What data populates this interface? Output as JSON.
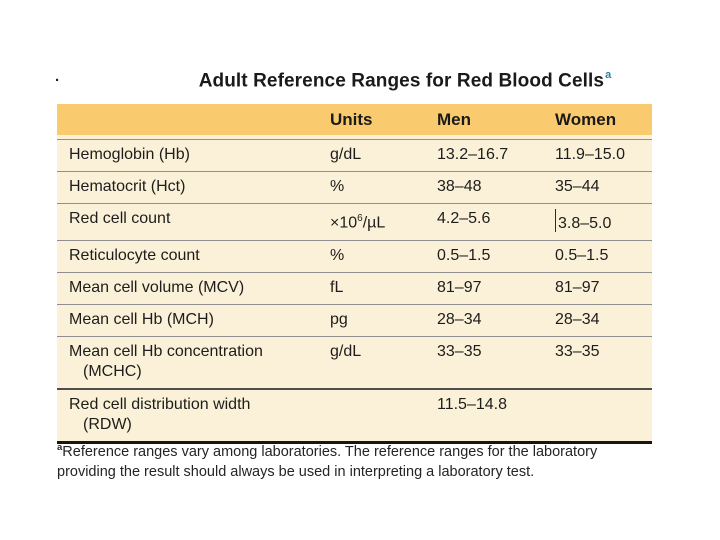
{
  "page": {
    "decorative_period": "."
  },
  "title": {
    "text": "Adult Reference Ranges for Red Blood Cells",
    "superscript": "a"
  },
  "table": {
    "header": {
      "units": "Units",
      "men": "Men",
      "women": "Women"
    },
    "rows": [
      {
        "label": "Hemoglobin (Hb)",
        "units": "g/dL",
        "men": "13.2–16.7",
        "women": "11.9–15.0"
      },
      {
        "label": "Hematocrit (Hct)",
        "units": "%",
        "men": "38–48",
        "women": "35–44"
      },
      {
        "label": "Red cell count",
        "units": {
          "pre": "×10",
          "sup": "6",
          "post": "/µL"
        },
        "men": "4.2–5.6",
        "women": "3.8–5.0",
        "cursor_artifact": true
      },
      {
        "label": "Reticulocyte count",
        "units": "%",
        "men": "0.5–1.5",
        "women": "0.5–1.5"
      },
      {
        "label": "Mean cell volume (MCV)",
        "units": "fL",
        "men": "81–97",
        "women": "81–97"
      },
      {
        "label": "Mean cell Hb (MCH)",
        "units": "pg",
        "men": "28–34",
        "women": "28–34"
      },
      {
        "label": "Mean cell Hb concentration",
        "label_line2": "(MCHC)",
        "units": "g/dL",
        "men": "33–35",
        "women": "33–35"
      },
      {
        "label": "Red cell distribution width",
        "label_line2": "(RDW)",
        "units": "",
        "men": "11.5–14.8",
        "women": ""
      }
    ]
  },
  "footnote": {
    "superscript": "a",
    "text": "Reference ranges vary among laboratories. The reference ranges for the laboratory providing the result should always be used in interpreting a laboratory test."
  },
  "colors": {
    "header_bg": "#FACB6E",
    "body_bg": "#FBF1D8",
    "title_superscript": "#2E7FA3",
    "separator": "#8f8f8f",
    "bottom_bar": "#161616"
  }
}
